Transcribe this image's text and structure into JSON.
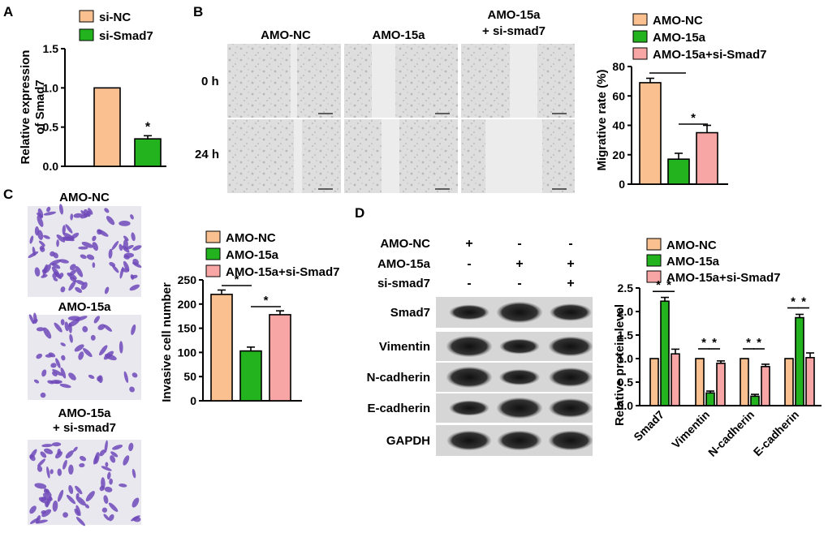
{
  "colors": {
    "amo_nc": "#FAC090",
    "amo_15a": "#22B31F",
    "rescue": "#F8A5A5",
    "si_nc": "#FAC090",
    "si_smad7": "#22B31F",
    "crystal_violet": "#6E49B8",
    "blot": "#222222",
    "micrograph_bg": "#DCDCDC"
  },
  "panels": {
    "A": {
      "letter": "A"
    },
    "B": {
      "letter": "B",
      "col_labels": [
        "AMO-NC",
        "AMO-15a",
        "AMO-15a"
      ],
      "col_label_line2": "+ si-smad7",
      "row_labels": [
        "0 h",
        "24 h"
      ]
    },
    "C": {
      "letter": "C",
      "image_labels": [
        "AMO-NC",
        "AMO-15a",
        "AMO-15a"
      ],
      "image_label_line2": "+ si-smad7"
    },
    "D": {
      "letter": "D",
      "conditions": [
        {
          "name": "AMO-NC",
          "marks": [
            "+",
            "-",
            "-"
          ]
        },
        {
          "name": "AMO-15a",
          "marks": [
            "-",
            "+",
            "+"
          ]
        },
        {
          "name": "si-smad7",
          "marks": [
            "-",
            "-",
            "+"
          ]
        }
      ],
      "blot_labels": [
        "Smad7",
        "Vimentin",
        "N-cadherin",
        "E-cadherin",
        "GAPDH"
      ],
      "band_intensity": [
        [
          0.55,
          1.0,
          0.7
        ],
        [
          1.0,
          0.55,
          0.9
        ],
        [
          1.0,
          0.6,
          0.85
        ],
        [
          0.55,
          1.0,
          0.85
        ],
        [
          0.9,
          0.9,
          0.9
        ]
      ]
    }
  },
  "chart_data": [
    {
      "id": "A",
      "type": "bar",
      "categories": [
        "si-NC",
        "si-Smad7"
      ],
      "series": [
        {
          "name": "si-NC",
          "values": [
            1.0,
            null
          ]
        },
        {
          "name": "si-Smad7",
          "values": [
            null,
            0.35
          ]
        }
      ],
      "values": [
        1.0,
        0.35
      ],
      "errors": [
        0.0,
        0.04
      ],
      "ylabel_line1": "Relative expression",
      "ylabel_line2": "of Smad7",
      "ylim": [
        0,
        1.5
      ],
      "yticks": [
        "0.0",
        "0.5",
        "1.0",
        "1.5"
      ],
      "ytick_values": [
        0,
        0.5,
        1.0,
        1.5
      ],
      "legend": [
        "si-NC",
        "si-Smad7"
      ],
      "legend_position": "top-left",
      "annotations": [
        "*"
      ]
    },
    {
      "id": "B",
      "type": "bar",
      "categories": [
        "AMO-NC",
        "AMO-15a",
        "AMO-15a+si-Smad7"
      ],
      "values": [
        69,
        17,
        35
      ],
      "errors": [
        3,
        4,
        5
      ],
      "ylabel": "Migrative rate (%)",
      "ylim": [
        0,
        80
      ],
      "yticks": [
        "0",
        "20",
        "40",
        "60",
        "80"
      ],
      "ytick_values": [
        0,
        20,
        40,
        60,
        80
      ],
      "legend": [
        "AMO-NC",
        "AMO-15a",
        "AMO-15a+si-Smad7"
      ],
      "legend_position": "top",
      "annotations": [
        "*"
      ]
    },
    {
      "id": "C",
      "type": "bar",
      "categories": [
        "AMO-NC",
        "AMO-15a",
        "AMO-15a+si-Smad7"
      ],
      "values": [
        220,
        103,
        178
      ],
      "errors": [
        9,
        8,
        8
      ],
      "ylabel": "Invasive cell number",
      "ylim": [
        0,
        250
      ],
      "yticks": [
        "0",
        "50",
        "100",
        "150",
        "200",
        "250"
      ],
      "ytick_values": [
        0,
        50,
        100,
        150,
        200,
        250
      ],
      "legend": [
        "AMO-NC",
        "AMO-15a",
        "AMO-15a+si-Smad7"
      ],
      "legend_position": "top",
      "annotations": [
        "*",
        "*"
      ]
    },
    {
      "id": "D",
      "type": "bar",
      "categories": [
        "Smad7",
        "Vimentin",
        "N-cadherin",
        "E-cadherin"
      ],
      "series": [
        {
          "name": "AMO-NC",
          "values": [
            1.0,
            1.0,
            1.0,
            1.0
          ],
          "errors": [
            0,
            0,
            0,
            0
          ]
        },
        {
          "name": "AMO-15a",
          "values": [
            2.22,
            0.27,
            0.2,
            1.87
          ],
          "errors": [
            0.08,
            0.04,
            0.04,
            0.07
          ]
        },
        {
          "name": "AMO-15a+si-Smad7",
          "values": [
            1.1,
            0.9,
            0.83,
            1.02
          ],
          "errors": [
            0.1,
            0.05,
            0.05,
            0.1
          ]
        }
      ],
      "ylabel": "Relative protein level",
      "ylim": [
        0,
        2.5
      ],
      "yticks": [
        "0.0",
        "0.5",
        "1.0",
        "1.5",
        "2.0",
        "2.5"
      ],
      "ytick_values": [
        0,
        0.5,
        1.0,
        1.5,
        2.0,
        2.5
      ],
      "legend": [
        "AMO-NC",
        "AMO-15a",
        "AMO-15a+si-Smad7"
      ],
      "legend_position": "top",
      "annotations": [
        "*"
      ]
    }
  ]
}
